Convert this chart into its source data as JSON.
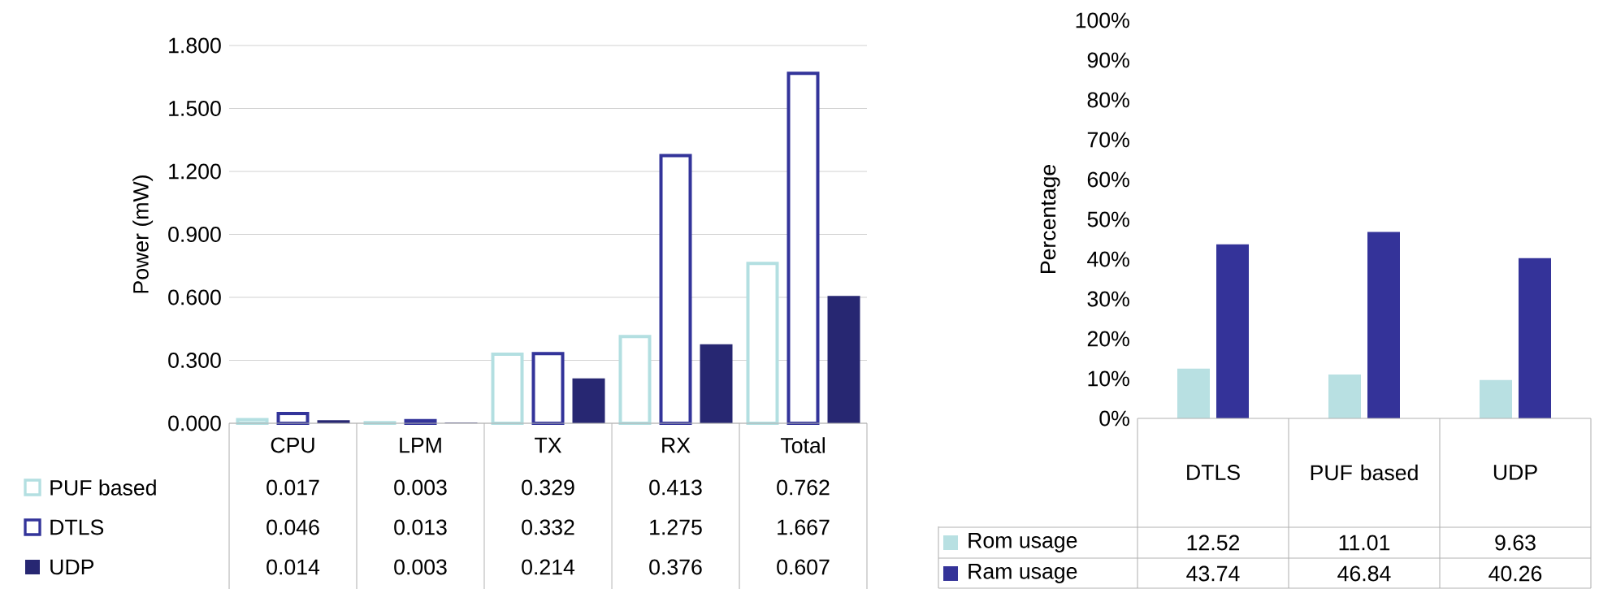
{
  "chart_data": [
    {
      "type": "bar",
      "ylabel": "Power (mW)",
      "categories": [
        "CPU",
        "LPM",
        "TX",
        "RX",
        "Total"
      ],
      "series": [
        {
          "name": "PUF based",
          "color": "#b3dfe1",
          "values": [
            0.017,
            0.003,
            0.329,
            0.413,
            0.762
          ]
        },
        {
          "name": "DTLS",
          "color": "#33349a",
          "values": [
            0.046,
            0.013,
            0.332,
            1.275,
            1.667
          ]
        },
        {
          "name": "UDP",
          "color": "#272772",
          "values": [
            0.014,
            0.003,
            0.214,
            0.376,
            0.607
          ]
        }
      ],
      "ylim": [
        0,
        1.8
      ],
      "yticks": [
        {
          "value": 0,
          "label": "0.000"
        },
        {
          "value": 0.3,
          "label": "0.300"
        },
        {
          "value": 0.6,
          "label": "0.600"
        },
        {
          "value": 0.9,
          "label": "0.900"
        },
        {
          "value": 1.2,
          "label": "1.200"
        },
        {
          "value": 1.5,
          "label": "1.500"
        },
        {
          "value": 1.8,
          "label": "1.800"
        }
      ],
      "grid": "y",
      "legend": "bottom",
      "data_labels": true
    },
    {
      "type": "bar",
      "ylabel": "Percentage",
      "categories": [
        "DTLS",
        "PUF based",
        "UDP"
      ],
      "series": [
        {
          "name": "Rom usage",
          "color": "#b8e0e2",
          "values": [
            12.52,
            11.01,
            9.63
          ]
        },
        {
          "name": "Ram usage",
          "color": "#343399",
          "values": [
            43.74,
            46.84,
            40.26
          ]
        }
      ],
      "ylim": [
        0,
        100
      ],
      "yticks": [
        {
          "value": 0,
          "label": "0%"
        },
        {
          "value": 10,
          "label": "10%"
        },
        {
          "value": 20,
          "label": "20%"
        },
        {
          "value": 30,
          "label": "30%"
        },
        {
          "value": 40,
          "label": "40%"
        },
        {
          "value": 50,
          "label": "50%"
        },
        {
          "value": 60,
          "label": "60%"
        },
        {
          "value": 70,
          "label": "70%"
        },
        {
          "value": 80,
          "label": "80%"
        },
        {
          "value": 90,
          "label": "90%"
        },
        {
          "value": 100,
          "label": "100%"
        }
      ],
      "legend": "bottom",
      "data_labels": true
    }
  ]
}
